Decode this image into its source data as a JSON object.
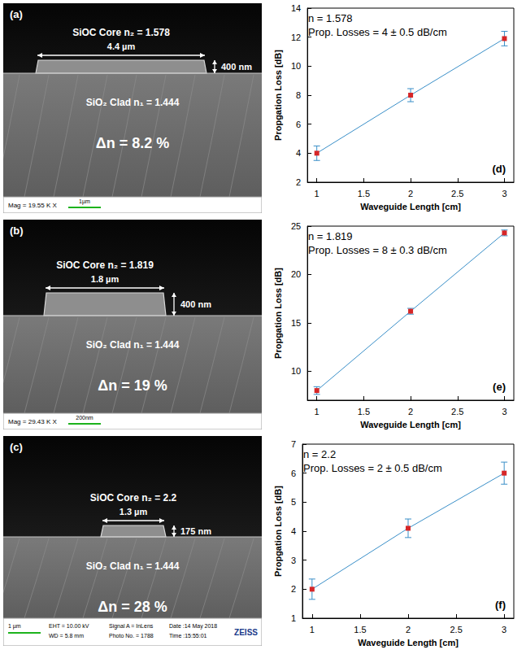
{
  "sem_images": [
    {
      "label": "(a)",
      "core_text": "SiOC Core n₂ = 1.578",
      "width_text": "4.4 µm",
      "height_text": "400 nm",
      "clad_text": "SiO₂ Clad n₁ = 1.444",
      "delta_text": "Δn = 8.2 %",
      "scale_bar": "1µm",
      "info": [
        "Mag = 19.55 K X"
      ]
    },
    {
      "label": "(b)",
      "core_text": "SiOC Core n₂ = 1.819",
      "width_text": "1.8 µm",
      "height_text": "400 nm",
      "clad_text": "SiO₂ Clad n₁ = 1.444",
      "delta_text": "Δn = 19 %",
      "scale_bar": "200nm",
      "info": [
        "Mag = 29.43 K X"
      ]
    },
    {
      "label": "(c)",
      "core_text": "SiOC Core n₂ = 2.2",
      "width_text": "1.3 µm",
      "height_text": "175 nm",
      "clad_text": "SiO₂ Clad n₁ = 1.444",
      "delta_text": "Δn = 28 %",
      "scale_bar": "1 µm",
      "info": [
        "EHT = 10.00 kV",
        "WD = 5.8 mm",
        "Signal A = InLens",
        "Photo No. = 1788",
        "Date :14 May 2018",
        "Time :15:55:01"
      ],
      "brand": "ZEISS"
    }
  ],
  "chart_data": [
    {
      "type": "line",
      "panel_label": "(d)",
      "annotations": [
        "n = 1.578",
        "Prop. Losses = 4 ± 0.5 dB/cm"
      ],
      "x_label": "Waveguide Length [cm]",
      "y_label": "Propgation Loss [dB]",
      "x": [
        1,
        2,
        3
      ],
      "values": [
        4,
        8,
        11.9
      ],
      "errors": [
        0.5,
        0.45,
        0.5
      ],
      "color": "#3a8fc8",
      "colors": [
        "#d62728",
        "#d62728",
        "#d62728"
      ],
      "marker": "square",
      "xlim": [
        0.9,
        3.1
      ],
      "xticks": [
        1,
        1.5,
        2,
        2.5,
        3
      ],
      "ylim": [
        2,
        14
      ],
      "yticks": [
        2,
        4,
        6,
        8,
        10,
        12,
        14
      ],
      "grid": false
    },
    {
      "type": "line",
      "panel_label": "(e)",
      "annotations": [
        "n = 1.819",
        "Prop. Losses = 8 ± 0.3 dB/cm"
      ],
      "x_label": "Waveguide Length [cm]",
      "y_label": "Propgation Loss [dB]",
      "x": [
        1,
        2,
        3
      ],
      "values": [
        8,
        16.2,
        24.3
      ],
      "errors": [
        0.4,
        0.3,
        0.3
      ],
      "color": "#3a8fc8",
      "colors": [
        "#d62728",
        "#d62728",
        "#d62728"
      ],
      "marker": "square",
      "xlim": [
        0.9,
        3.1
      ],
      "xticks": [
        1,
        1.5,
        2,
        2.5,
        3
      ],
      "ylim": [
        7,
        25
      ],
      "yticks": [
        10,
        15,
        20,
        25
      ],
      "grid": false
    },
    {
      "type": "line",
      "panel_label": "(f)",
      "annotations": [
        "n = 2.2",
        "Prop. Losses = 2 ± 0.5 dB/cm"
      ],
      "x_label": "Waveguide Length [cm]",
      "y_label": "Propgation Loss [dB]",
      "x": [
        1,
        2,
        3
      ],
      "values": [
        2,
        4.1,
        6
      ],
      "errors": [
        0.35,
        0.32,
        0.38
      ],
      "color": "#3a8fc8",
      "colors": [
        "#d62728",
        "#d62728",
        "#d62728"
      ],
      "marker": "square",
      "xlim": [
        0.9,
        3.1
      ],
      "xticks": [
        1,
        1.5,
        2,
        2.5,
        3
      ],
      "ylim": [
        1,
        7
      ],
      "yticks": [
        1,
        2,
        3,
        4,
        5,
        6,
        7
      ],
      "grid": false
    }
  ]
}
